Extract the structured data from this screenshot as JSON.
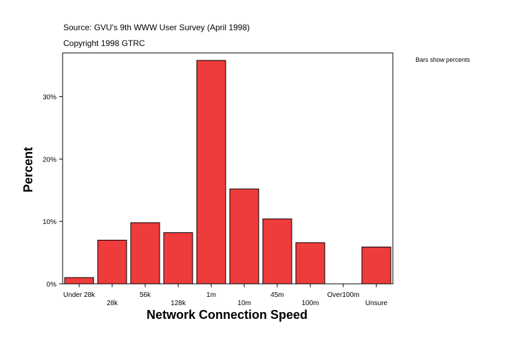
{
  "header": {
    "source": "Source: GVU's 9th WWW User Survey (April 1998)",
    "copyright": "Copyright 1998 GTRC"
  },
  "note": "Bars show percents",
  "colors": {
    "bar_fill": "#ee3b3b",
    "bar_stroke": "#000000"
  },
  "chart_data": {
    "type": "bar",
    "categories": [
      "Under 28k",
      "28k",
      "56k",
      "128k",
      "1m",
      "10m",
      "45m",
      "100m",
      "Over100m",
      "Unsure"
    ],
    "values": [
      1.0,
      7.0,
      9.8,
      8.2,
      35.8,
      15.2,
      10.4,
      6.6,
      0.0,
      5.9
    ],
    "xlabel": "Network Connection Speed",
    "ylabel": "Percent",
    "ylim": [
      0,
      37
    ],
    "yticks": [
      0,
      10,
      20,
      30
    ],
    "ytick_labels": [
      "0%",
      "10%",
      "20%",
      "30%"
    ],
    "grid": false,
    "legend": "none"
  }
}
